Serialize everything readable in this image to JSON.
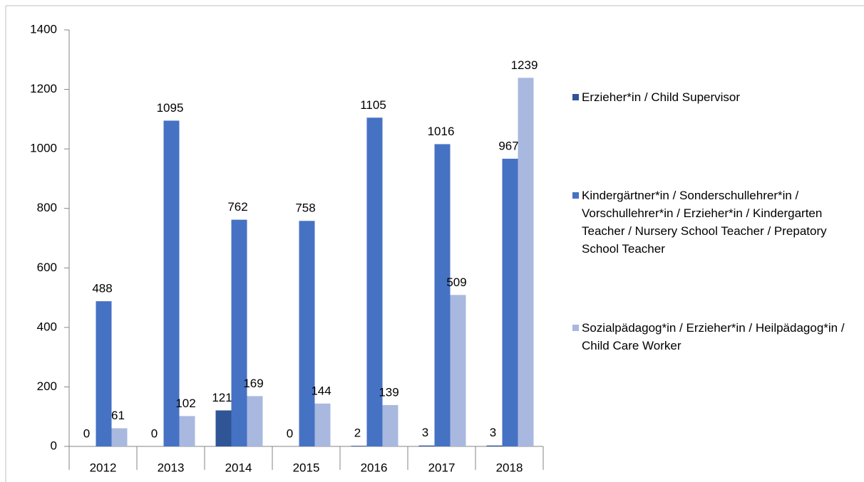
{
  "chart_data": {
    "type": "bar",
    "categories": [
      "2012",
      "2013",
      "2014",
      "2015",
      "2016",
      "2017",
      "2018"
    ],
    "series": [
      {
        "name": "Erzieher*in /  Child Supervisor",
        "color": "#2f5597",
        "values": [
          0,
          0,
          121,
          0,
          2,
          3,
          3
        ]
      },
      {
        "name": "Kindergärtner*in / Sonderschullehrer*in / Vorschullehrer*in / Erzieher*in / Kindergarten Teacher / Nursery School Teacher / Prepatory School Teacher",
        "color": "#4672c4",
        "values": [
          488,
          1095,
          762,
          758,
          1105,
          1016,
          967
        ]
      },
      {
        "name": "Sozialpädagog*in / Erzieher*in / Heilpädagog*in / Child Care Worker",
        "color": "#a9b8df",
        "values": [
          61,
          102,
          169,
          144,
          139,
          509,
          1239
        ]
      }
    ],
    "ylim": [
      0,
      1400
    ],
    "yticks": [
      0,
      200,
      400,
      600,
      800,
      1000,
      1200,
      1400
    ],
    "grid": false
  }
}
